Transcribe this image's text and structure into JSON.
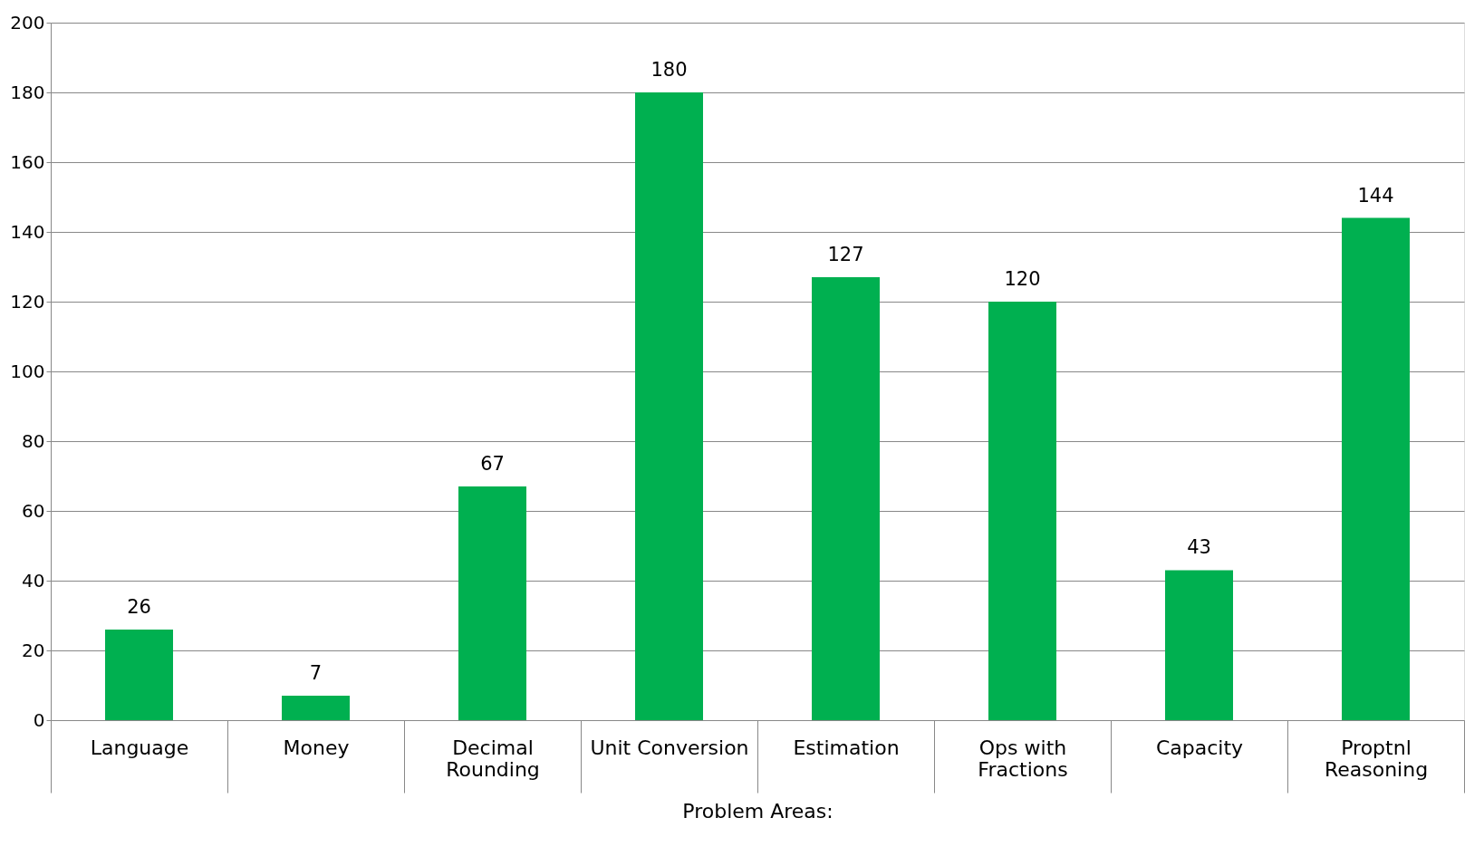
{
  "chart_data": {
    "type": "bar",
    "categories": [
      "Language",
      "Money",
      "Decimal Rounding",
      "Unit Conversion",
      "Estimation",
      "Ops with Fractions",
      "Capacity",
      "Proptnl Reasoning"
    ],
    "values": [
      26,
      7,
      67,
      180,
      127,
      120,
      43,
      144
    ],
    "color": "#00b050",
    "xlabel": "Problem Areas:",
    "ylim": [
      0,
      200
    ],
    "yticks": [
      0,
      20,
      40,
      60,
      80,
      100,
      120,
      140,
      160,
      180,
      200
    ],
    "grid": "y",
    "data_labels": true
  }
}
